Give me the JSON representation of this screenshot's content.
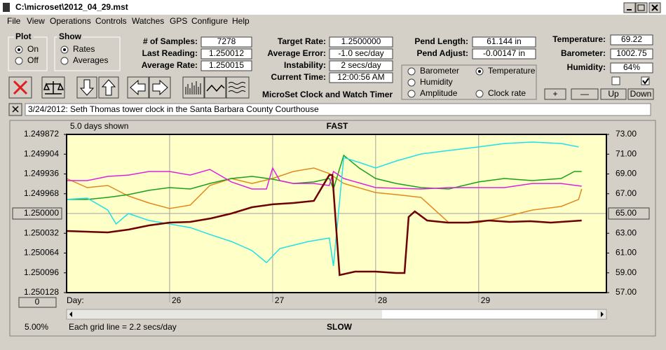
{
  "window": {
    "title": "C:\\microset\\2012_04_29.mst"
  },
  "menu": [
    "File",
    "View",
    "Operations",
    "Controls",
    "Watches",
    "GPS",
    "Configure",
    "Help"
  ],
  "plot_group": {
    "title": "Plot",
    "options": [
      "On",
      "Off"
    ]
  },
  "show_group": {
    "title": "Show",
    "options": [
      "Rates",
      "Averages"
    ]
  },
  "fields": [
    {
      "label": "# of Samples:",
      "value": "7278"
    },
    {
      "label": "Last Reading:",
      "value": "1.250012"
    },
    {
      "label": "Average Rate:",
      "value": "1.250015"
    },
    {
      "label": "Target Rate:",
      "value": "1.2500000"
    },
    {
      "label": "Average Error:",
      "value": "-1.0 sec/day"
    },
    {
      "label": "Instability:",
      "value": "2 secs/day"
    },
    {
      "label": "Current Time:",
      "value": "12:00:56 AM"
    },
    {
      "label": "Pend Length:",
      "value": "61.144 in"
    },
    {
      "label": "Pend Adjust:",
      "value": "-0.00147 in"
    },
    {
      "label": "Temperature:",
      "value": "69.22"
    },
    {
      "label": "Barometer:",
      "value": "1002.75"
    },
    {
      "label": "Humidity:",
      "value": "64%"
    }
  ],
  "app_name": "MicroSet Clock and Watch Timer",
  "buttons": [
    "+",
    "—",
    "Up",
    "Down"
  ],
  "note": "3/24/2012: Seth Thomas tower clock in the Santa Barbara County Courthouse",
  "chart_data": {
    "type": "line",
    "title": "FAST",
    "bottom_label": "SLOW",
    "span_label": "5.0 days shown",
    "x_label": "Day:",
    "grid_note": "Each grid line = 2.2 secs/day",
    "zoom_label": "5.00%",
    "offset_button": "0",
    "xlim": [
      25.0,
      30.24
    ],
    "xticks": [
      26,
      27,
      28,
      29
    ],
    "ylim": [
      1.250128,
      1.249872
    ],
    "yticks": [
      1.249872,
      1.249904,
      1.249936,
      1.249968,
      {
        "value": 1.25,
        "label": "1.250000"
      },
      1.250032,
      1.250064,
      1.250096,
      1.250128
    ],
    "y2lim": [
      57,
      73
    ],
    "y2ticks": [
      {
        "value": 73,
        "label": "73.00"
      },
      {
        "value": 71,
        "label": "71.00"
      },
      {
        "value": 69,
        "label": "69.00"
      },
      {
        "value": 67,
        "label": "67.00"
      },
      {
        "value": 65,
        "label": "65.00"
      },
      {
        "value": 63,
        "label": "63.00"
      },
      {
        "value": 61,
        "label": "61.00"
      },
      {
        "value": 59,
        "label": "59.00"
      },
      {
        "value": 57,
        "label": "57.00"
      }
    ],
    "series": [
      {
        "name": "Barometer",
        "color": "#e08a1e",
        "axis": "y2",
        "x": [
          25.0,
          25.2,
          25.4,
          25.6,
          25.8,
          26.0,
          26.2,
          26.39,
          26.6,
          26.8,
          27.0,
          27.2,
          27.4,
          27.55,
          27.69,
          28.0,
          28.2,
          28.44,
          28.71,
          29.0,
          29.25,
          29.52,
          29.8,
          29.97,
          30.0
        ],
        "values": [
          68.54,
          67.62,
          67.83,
          66.77,
          66.06,
          65.5,
          65.85,
          67.83,
          68.54,
          68.04,
          68.54,
          69.25,
          69.6,
          69.04,
          68.04,
          67.12,
          66.91,
          66.63,
          64.08,
          64.08,
          64.65,
          65.35,
          65.71,
          66.42,
          67.48
        ]
      },
      {
        "name": "Temperature",
        "color": "#1aa01a",
        "axis": "y2",
        "x": [
          25.0,
          25.2,
          25.4,
          25.6,
          25.8,
          26.0,
          26.2,
          26.39,
          26.6,
          26.8,
          27.0,
          27.2,
          27.4,
          27.55,
          27.59,
          27.69,
          27.84,
          28.0,
          28.2,
          28.44,
          28.71,
          29.0,
          29.25,
          29.52,
          29.8,
          29.93,
          30.0
        ],
        "values": [
          66.42,
          66.42,
          66.63,
          66.91,
          67.34,
          67.62,
          67.48,
          68.04,
          68.54,
          68.75,
          68.47,
          68.04,
          68.19,
          68.54,
          67.48,
          70.88,
          69.6,
          68.54,
          68.04,
          67.62,
          67.48,
          68.19,
          68.54,
          68.33,
          68.54,
          69.25,
          69.25
        ]
      },
      {
        "name": "Humidity",
        "color": "#e020e0",
        "axis": "y2",
        "x": [
          25.0,
          25.2,
          25.4,
          25.6,
          25.8,
          26.0,
          26.2,
          26.39,
          26.6,
          26.8,
          26.94,
          27.0,
          27.07,
          27.2,
          27.4,
          27.55,
          27.59,
          27.69,
          28.0,
          28.44,
          28.71,
          29.0,
          29.25,
          29.52,
          29.8,
          30.0
        ],
        "values": [
          68.33,
          68.33,
          68.75,
          68.89,
          69.25,
          69.25,
          68.89,
          69.46,
          68.19,
          67.48,
          67.48,
          69.6,
          68.33,
          68.04,
          68.04,
          67.83,
          69.25,
          68.54,
          67.62,
          67.48,
          67.62,
          67.62,
          67.62,
          68.04,
          68.04,
          67.76
        ]
      },
      {
        "name": "Amplitude",
        "color": "#20e0e8",
        "axis": "y2",
        "x": [
          25.0,
          25.2,
          25.4,
          25.48,
          25.6,
          25.8,
          26.0,
          26.2,
          26.39,
          26.6,
          26.8,
          26.94,
          27.07,
          27.35,
          27.55,
          27.59,
          27.69,
          27.84,
          28.0,
          28.2,
          28.44,
          28.71,
          29.0,
          29.25,
          29.52,
          29.8,
          29.97
        ],
        "values": [
          66.42,
          66.56,
          65.35,
          63.94,
          65.0,
          64.29,
          63.94,
          63.58,
          62.88,
          62.17,
          61.25,
          60.04,
          61.46,
          62.17,
          62.52,
          59.69,
          70.66,
          70.17,
          69.6,
          70.31,
          71.02,
          71.37,
          71.73,
          72.08,
          72.22,
          72.08,
          71.73
        ]
      },
      {
        "name": "Clock rate",
        "color": "#6e0000",
        "axis": "y",
        "x": [
          25.0,
          25.2,
          25.4,
          25.6,
          25.8,
          26.0,
          26.2,
          26.4,
          26.6,
          26.8,
          27.0,
          27.2,
          27.4,
          27.55,
          27.58,
          27.65,
          27.8,
          28.0,
          28.2,
          28.28,
          28.32,
          28.38,
          28.5,
          28.7,
          28.9,
          29.1,
          29.3,
          29.5,
          29.7,
          29.9,
          30.0
        ],
        "values": [
          1.2500283,
          1.2500295,
          1.2500306,
          1.250026,
          1.2500193,
          1.2500147,
          1.2500136,
          1.2500079,
          1.25,
          1.2499898,
          1.2499852,
          1.249983,
          1.2499796,
          1.2499377,
          1.2499377,
          1.2500997,
          1.250094,
          1.250094,
          1.2500963,
          1.2500963,
          1.2500057,
          1.2499966,
          1.2500113,
          1.2500147,
          1.2500147,
          1.2500113,
          1.2500136,
          1.2500125,
          1.2500147,
          1.2500125,
          1.2500113
        ]
      }
    ]
  }
}
